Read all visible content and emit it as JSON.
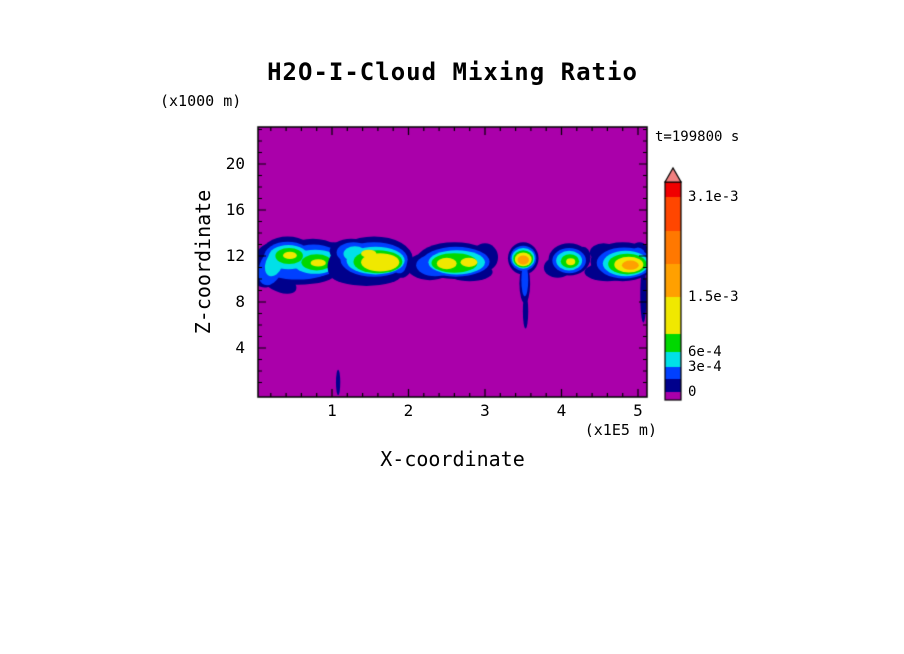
{
  "title": "H2O-I-Cloud Mixing Ratio",
  "annotations": {
    "time_label": "t=199800 s",
    "z_unit": "(x1000 m)",
    "x_unit": "(x1E5 m)"
  },
  "axes": {
    "x_label": "X-coordinate",
    "z_label": "Z-coordinate",
    "x_ticks": [
      1,
      2,
      3,
      4,
      5
    ],
    "z_ticks": [
      4,
      8,
      12,
      16,
      20
    ],
    "x_range": [
      0,
      5.12
    ],
    "z_range": [
      0,
      23.2
    ]
  },
  "colorbar": {
    "arrow_color": "#F08080",
    "segments": [
      {
        "color": "#AA00AA",
        "height": 8
      },
      {
        "color": "#00008C",
        "height": 13
      },
      {
        "color": "#0040FF",
        "height": 12
      },
      {
        "color": "#00E0E8",
        "height": 15
      },
      {
        "color": "#00D800",
        "height": 18
      },
      {
        "color": "#F0E800",
        "height": 37
      },
      {
        "color": "#FFA000",
        "height": 33
      },
      {
        "color": "#FF7800",
        "height": 33
      },
      {
        "color": "#FF4600",
        "height": 34
      },
      {
        "color": "#F00000",
        "height": 15
      }
    ],
    "labels": [
      {
        "text": "0",
        "after_segment": 1
      },
      {
        "text": "3e-4",
        "after_segment": 3
      },
      {
        "text": "6e-4",
        "after_segment": 4
      },
      {
        "text": "1.5e-3",
        "after_segment": 6
      },
      {
        "text": "3.1e-3",
        "after_segment": 9
      }
    ]
  },
  "chart_data": {
    "type": "heatmap",
    "title": "H2O-I-Cloud Mixing Ratio",
    "xlabel": "X-coordinate (x1E5 m)",
    "ylabel": "Z-coordinate (x1000 m)",
    "time": "t=199800 s",
    "x_range": [
      0,
      5.12
    ],
    "z_range": [
      0,
      23.2
    ],
    "contour_levels_labeled": [
      "0",
      "3e-4",
      "6e-4",
      "1.5e-3",
      "3.1e-3"
    ],
    "background_value": 0,
    "palette": {
      "background": "#AA00AA",
      "navy": "#00008C",
      "blue": "#0040FF",
      "cyan": "#00E0E8",
      "green": "#00D800",
      "yellow": "#F0E800",
      "orange": "#FFA000"
    },
    "clouds": [
      {
        "layers": [
          {
            "level": "navy",
            "ellipses": [
              [
                0.17,
                11.2,
                0.22,
                2.0,
                0.35
              ],
              [
                0.42,
                12.0,
                0.36,
                1.7
              ],
              [
                0.75,
                11.7,
                0.42,
                1.8
              ],
              [
                1.02,
                11.9,
                0.17,
                1.3
              ],
              [
                0.55,
                10.5,
                0.5,
                1.0
              ],
              [
                0.28,
                9.9,
                0.28,
                0.9,
                0.5
              ]
            ]
          },
          {
            "level": "blue",
            "ellipses": [
              [
                0.42,
                11.9,
                0.31,
                1.35
              ],
              [
                0.76,
                11.6,
                0.36,
                1.4
              ],
              [
                0.2,
                11.0,
                0.15,
                1.6,
                0.35
              ],
              [
                0.55,
                10.7,
                0.4,
                0.75
              ]
            ]
          },
          {
            "level": "cyan",
            "ellipses": [
              [
                0.43,
                11.9,
                0.26,
                1.05
              ],
              [
                0.78,
                11.5,
                0.3,
                1.05
              ],
              [
                0.24,
                11.3,
                0.11,
                1.1,
                0.35
              ]
            ]
          },
          {
            "level": "green",
            "ellipses": [
              [
                0.44,
                12.0,
                0.18,
                0.7
              ],
              [
                0.8,
                11.45,
                0.2,
                0.7
              ]
            ]
          },
          {
            "level": "yellow",
            "ellipses": [
              [
                0.45,
                12.05,
                0.09,
                0.32
              ],
              [
                0.82,
                11.4,
                0.1,
                0.32
              ]
            ]
          }
        ]
      },
      {
        "layers": [
          {
            "level": "navy",
            "ellipses": [
              [
                1.55,
                11.8,
                0.5,
                1.9
              ],
              [
                1.25,
                12.4,
                0.28,
                1.1
              ],
              [
                1.9,
                11.5,
                0.16,
                1.4
              ],
              [
                1.45,
                10.3,
                0.45,
                0.9
              ],
              [
                1.13,
                11.3,
                0.18,
                1.5,
                0.4
              ]
            ]
          },
          {
            "level": "blue",
            "ellipses": [
              [
                1.55,
                11.7,
                0.44,
                1.5
              ],
              [
                1.28,
                12.3,
                0.22,
                0.9
              ],
              [
                1.88,
                11.5,
                0.1,
                1.0
              ]
            ]
          },
          {
            "level": "cyan",
            "ellipses": [
              [
                1.57,
                11.6,
                0.38,
                1.2
              ],
              [
                1.3,
                12.2,
                0.15,
                0.65
              ]
            ]
          },
          {
            "level": "green",
            "ellipses": [
              [
                1.6,
                11.5,
                0.32,
                1.0
              ]
            ]
          },
          {
            "level": "yellow",
            "ellipses": [
              [
                1.63,
                11.45,
                0.25,
                0.8
              ],
              [
                1.48,
                12.2,
                0.1,
                0.35
              ]
            ]
          }
        ]
      },
      {
        "layers": [
          {
            "level": "navy",
            "ellipses": [
              [
                2.6,
                11.6,
                0.5,
                1.6
              ],
              [
                2.28,
                11.1,
                0.3,
                1.2
              ],
              [
                3.0,
                11.9,
                0.17,
                1.2
              ],
              [
                2.8,
                10.6,
                0.3,
                0.8
              ]
            ]
          },
          {
            "level": "blue",
            "ellipses": [
              [
                2.62,
                11.5,
                0.44,
                1.3
              ],
              [
                2.35,
                11.2,
                0.25,
                0.95
              ]
            ]
          },
          {
            "level": "cyan",
            "ellipses": [
              [
                2.63,
                11.45,
                0.37,
                1.05
              ]
            ]
          },
          {
            "level": "green",
            "ellipses": [
              [
                2.6,
                11.4,
                0.3,
                0.85
              ]
            ]
          },
          {
            "level": "yellow",
            "ellipses": [
              [
                2.5,
                11.35,
                0.13,
                0.5
              ],
              [
                2.79,
                11.45,
                0.11,
                0.4
              ]
            ]
          }
        ]
      },
      {
        "layers": [
          {
            "level": "navy",
            "ellipses": [
              [
                3.5,
                11.8,
                0.2,
                1.4
              ],
              [
                3.52,
                9.6,
                0.07,
                1.7
              ],
              [
                3.53,
                7.2,
                0.035,
                1.5
              ]
            ]
          },
          {
            "level": "blue",
            "ellipses": [
              [
                3.5,
                11.8,
                0.17,
                1.1
              ],
              [
                3.52,
                9.9,
                0.045,
                1.4
              ]
            ]
          },
          {
            "level": "cyan",
            "ellipses": [
              [
                3.5,
                11.8,
                0.15,
                0.9
              ]
            ]
          },
          {
            "level": "green",
            "ellipses": [
              [
                3.5,
                11.75,
                0.13,
                0.75
              ]
            ]
          },
          {
            "level": "yellow",
            "ellipses": [
              [
                3.5,
                11.7,
                0.11,
                0.6
              ]
            ]
          },
          {
            "level": "orange",
            "ellipses": [
              [
                3.5,
                11.65,
                0.075,
                0.4
              ]
            ]
          }
        ]
      },
      {
        "layers": [
          {
            "level": "navy",
            "ellipses": [
              [
                4.1,
                11.7,
                0.27,
                1.4
              ],
              [
                3.95,
                11.0,
                0.18,
                0.9
              ],
              [
                4.28,
                11.9,
                0.1,
                0.9
              ]
            ]
          },
          {
            "level": "blue",
            "ellipses": [
              [
                4.1,
                11.6,
                0.22,
                1.1
              ]
            ]
          },
          {
            "level": "cyan",
            "ellipses": [
              [
                4.1,
                11.6,
                0.17,
                0.85
              ]
            ]
          },
          {
            "level": "green",
            "ellipses": [
              [
                4.11,
                11.55,
                0.12,
                0.6
              ]
            ]
          },
          {
            "level": "yellow",
            "ellipses": [
              [
                4.12,
                11.5,
                0.06,
                0.3
              ]
            ]
          }
        ]
      },
      {
        "layers": [
          {
            "level": "navy",
            "ellipses": [
              [
                4.8,
                11.5,
                0.42,
                1.7
              ],
              [
                5.02,
                11.9,
                0.14,
                1.3
              ],
              [
                4.55,
                12.3,
                0.18,
                0.8
              ],
              [
                4.6,
                10.6,
                0.3,
                0.8
              ],
              [
                5.07,
                8.6,
                0.04,
                2.4
              ]
            ]
          },
          {
            "level": "blue",
            "ellipses": [
              [
                4.82,
                11.4,
                0.36,
                1.35
              ],
              [
                5.0,
                11.9,
                0.1,
                0.85
              ]
            ]
          },
          {
            "level": "cyan",
            "ellipses": [
              [
                4.84,
                11.35,
                0.3,
                1.1
              ]
            ]
          },
          {
            "level": "green",
            "ellipses": [
              [
                4.86,
                11.3,
                0.25,
                0.9
              ]
            ]
          },
          {
            "level": "yellow",
            "ellipses": [
              [
                4.88,
                11.25,
                0.19,
                0.68
              ]
            ]
          },
          {
            "level": "orange",
            "ellipses": [
              [
                4.9,
                11.2,
                0.11,
                0.4
              ]
            ]
          }
        ]
      },
      {
        "layers": [
          {
            "level": "navy",
            "ellipses": [
              [
                1.08,
                1.0,
                0.028,
                1.1
              ]
            ]
          }
        ]
      }
    ]
  }
}
